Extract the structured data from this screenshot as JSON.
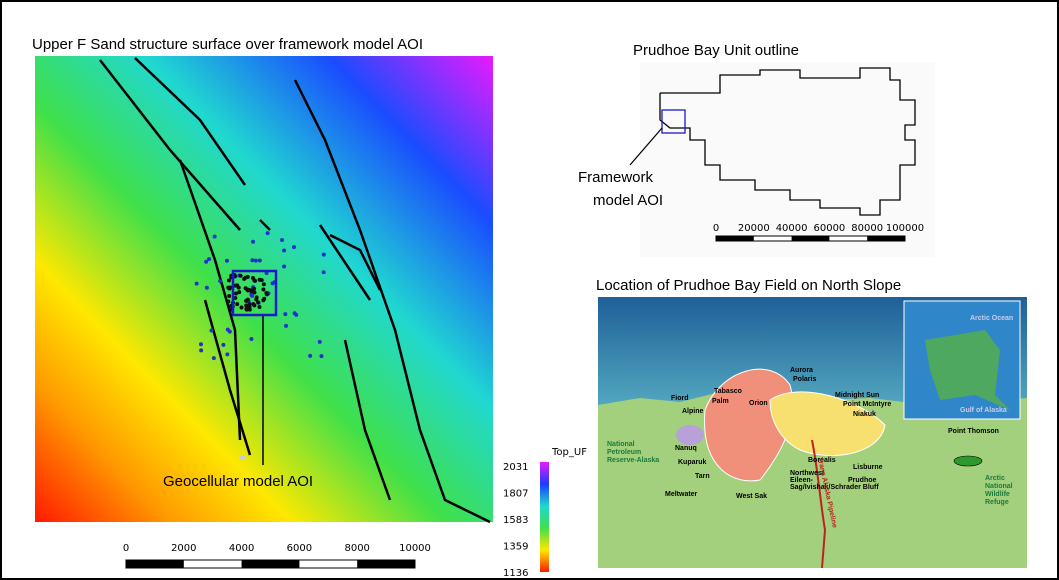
{
  "left_panel": {
    "title": "Upper F Sand structure surface over framework model AOI",
    "aoi_label": "Geocellular model AOI",
    "scale_labels": [
      0,
      2000,
      4000,
      6000,
      8000,
      10000
    ],
    "colorbar": {
      "title": "Top_UF",
      "labels": [
        2031,
        1807,
        1583,
        1359,
        1136
      ]
    }
  },
  "unit_panel": {
    "title": "Prudhoe Bay Unit outline",
    "aoi_label": [
      "Framework",
      "model AOI"
    ],
    "scale_labels": [
      0,
      20000,
      40000,
      60000,
      80000,
      100000
    ]
  },
  "slope_panel": {
    "title": "Location of Prudhoe Bay Field on North Slope",
    "labels": [
      "Fiord",
      "Alpine",
      "Tabasco",
      "Palm",
      "Orion",
      "Aurora",
      "Polaris",
      "Midnight Sun",
      "Point McIntyre",
      "Niakuk",
      "Point Thomson",
      "Nanuq",
      "Kuparuk",
      "Tarn",
      "Meltwater",
      "West Sak",
      "Borealis",
      "Lisburne",
      "Prudhoe",
      "Northwest",
      "Eileen-",
      "Sag/Ivishak/Schrader Bluff"
    ],
    "regions": [
      [
        "National",
        "Petroleum",
        "Reserve-Alaska"
      ],
      [
        "Arctic",
        "National",
        "Wildlife",
        "Refuge"
      ]
    ],
    "inset": [
      "Arctic Ocean",
      "Gulf of Alaska"
    ],
    "pipeline": "Trans Alaska Pipeline"
  }
}
